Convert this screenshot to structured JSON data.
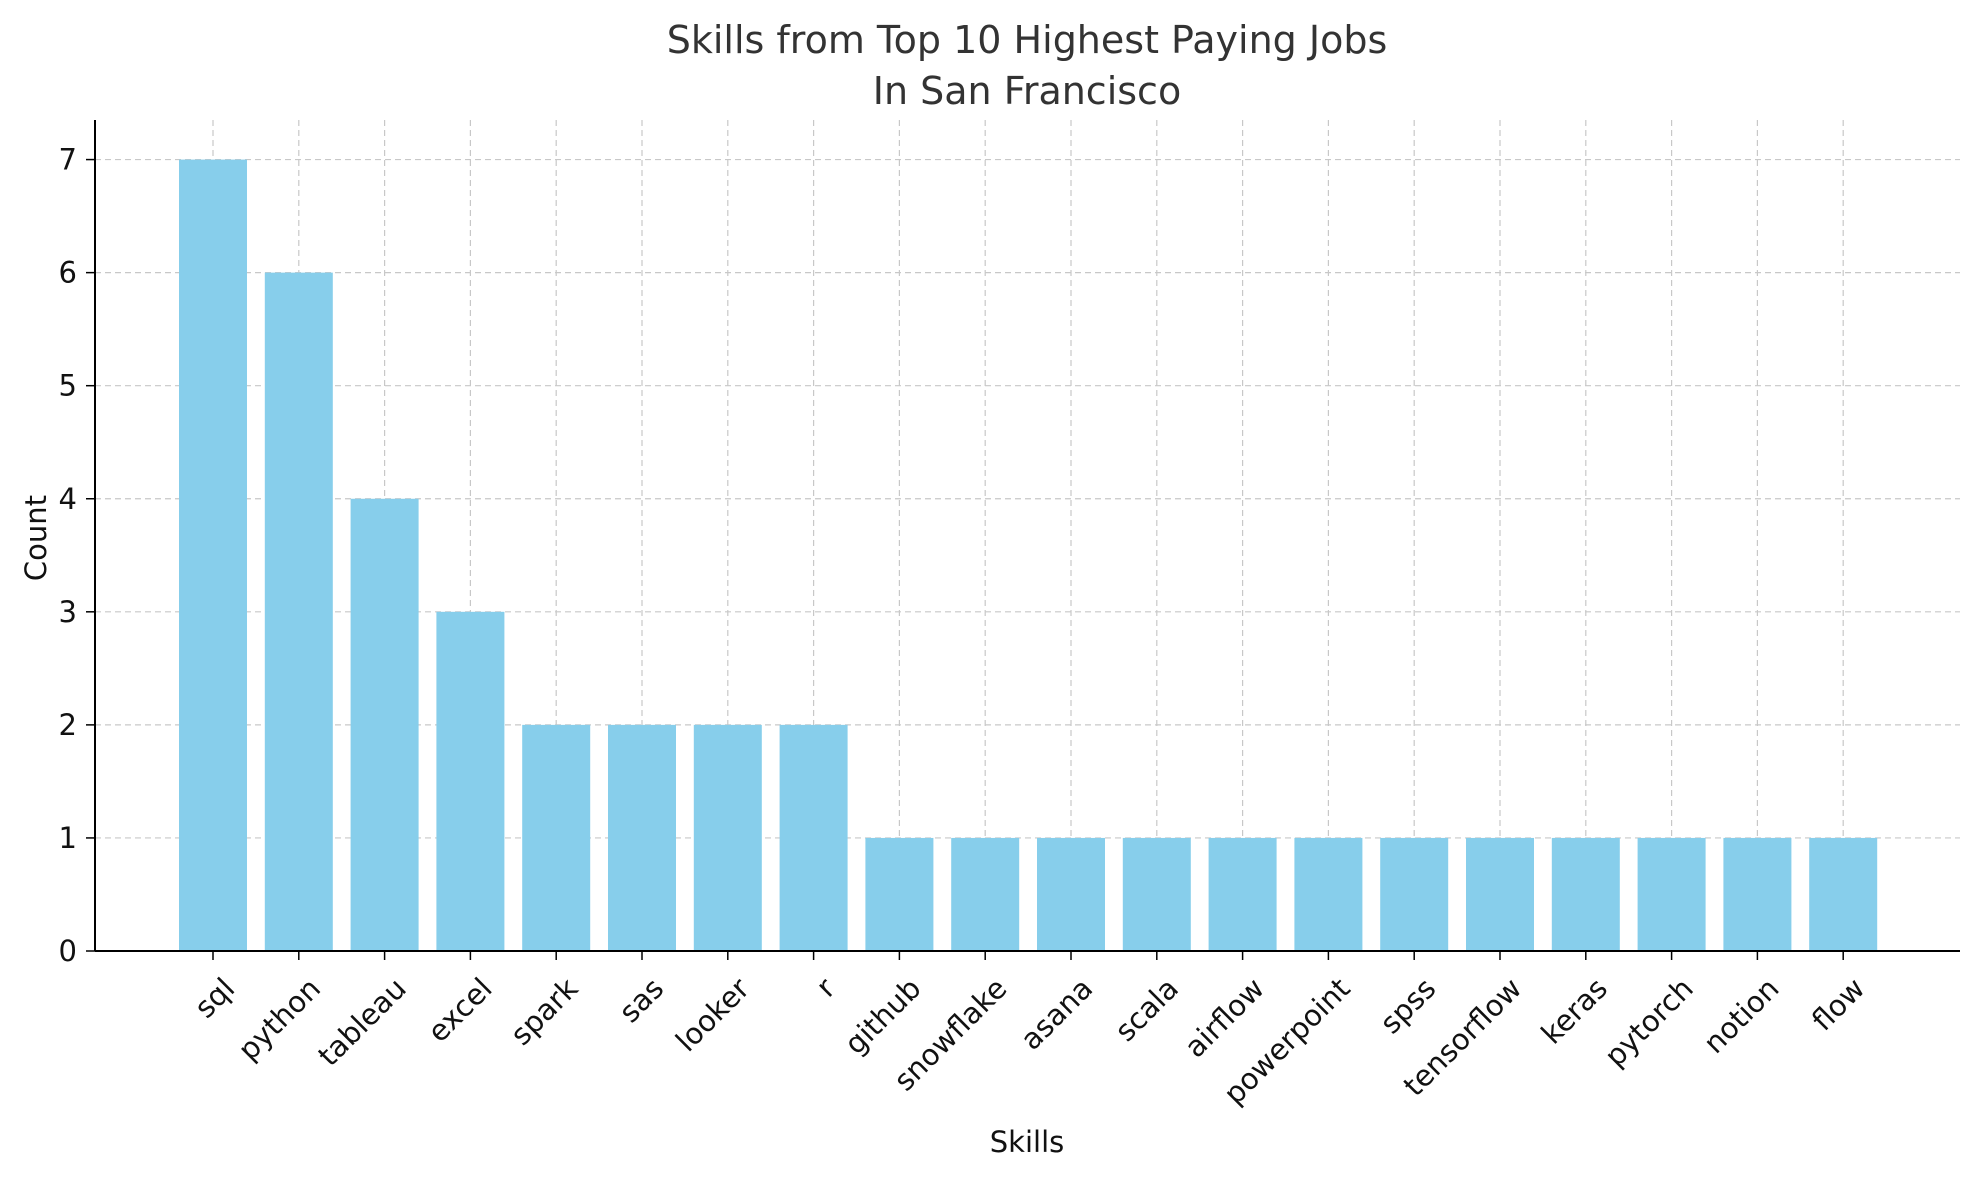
{
  "chart_data": {
    "type": "bar",
    "title_lines": [
      "Skills from Top 10 Highest Paying Jobs",
      "In San Francisco"
    ],
    "xlabel": "Skills",
    "ylabel": "Count",
    "categories": [
      "sql",
      "python",
      "tableau",
      "excel",
      "spark",
      "sas",
      "looker",
      "r",
      "github",
      "snowflake",
      "asana",
      "scala",
      "airflow",
      "powerpoint",
      "spss",
      "tensorflow",
      "keras",
      "pytorch",
      "notion",
      "flow"
    ],
    "values": [
      7,
      6,
      4,
      3,
      2,
      2,
      2,
      2,
      1,
      1,
      1,
      1,
      1,
      1,
      1,
      1,
      1,
      1,
      1,
      1
    ],
    "yticks": [
      0,
      1,
      2,
      3,
      4,
      5,
      6,
      7
    ],
    "ylim": [
      0,
      7.35
    ],
    "grid": true,
    "bar_color": "#87CEEB",
    "xtick_rotation_deg": -45
  }
}
